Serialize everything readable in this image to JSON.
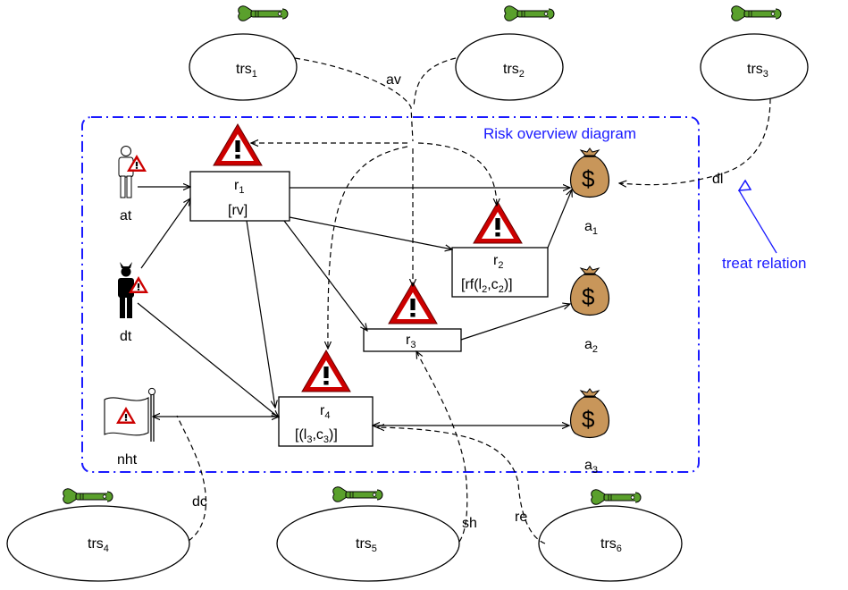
{
  "frame": {
    "title": "Risk overview diagram",
    "color": "#1a1aff"
  },
  "treatments": [
    {
      "id": "trs1",
      "base": "trs",
      "sub": "1"
    },
    {
      "id": "trs2",
      "base": "trs",
      "sub": "2"
    },
    {
      "id": "trs3",
      "base": "trs",
      "sub": "3"
    },
    {
      "id": "trs4",
      "base": "trs",
      "sub": "4"
    },
    {
      "id": "trs5",
      "base": "trs",
      "sub": "5"
    },
    {
      "id": "trs6",
      "base": "trs",
      "sub": "6"
    }
  ],
  "threats": [
    {
      "id": "at",
      "label": "at",
      "icon": "accidental-human-threat-icon"
    },
    {
      "id": "dt",
      "label": "dt",
      "icon": "deliberate-human-threat-icon"
    },
    {
      "id": "nht",
      "label": "nht",
      "icon": "non-human-threat-icon"
    }
  ],
  "risks": [
    {
      "id": "r1",
      "base": "r",
      "sub": "1",
      "value": "[rv]"
    },
    {
      "id": "r2",
      "base": "r",
      "sub": "2",
      "value_parts": [
        "[rf(l",
        "2",
        ",c",
        "2",
        ")]"
      ]
    },
    {
      "id": "r3",
      "base": "r",
      "sub": "3"
    },
    {
      "id": "r4",
      "base": "r",
      "sub": "4",
      "value_parts": [
        "[(l",
        "3",
        ",c",
        "3",
        ")]"
      ]
    }
  ],
  "assets": [
    {
      "id": "a1",
      "base": "a",
      "sub": "1",
      "symbol": "$"
    },
    {
      "id": "a2",
      "base": "a",
      "sub": "2",
      "symbol": "$"
    },
    {
      "id": "a3",
      "base": "a",
      "sub": "3",
      "symbol": "$"
    }
  ],
  "treatment_labels": {
    "av": "av",
    "dl": "dl",
    "dc": "dc",
    "sh": "sh",
    "re": "re"
  },
  "annotation": {
    "text": "treat relation"
  },
  "colors": {
    "frame": "#1a1aff",
    "wrench": "#5aa02c",
    "warning_red": "#cc0000",
    "money_bag": "#c8965a",
    "line": "#000000"
  }
}
